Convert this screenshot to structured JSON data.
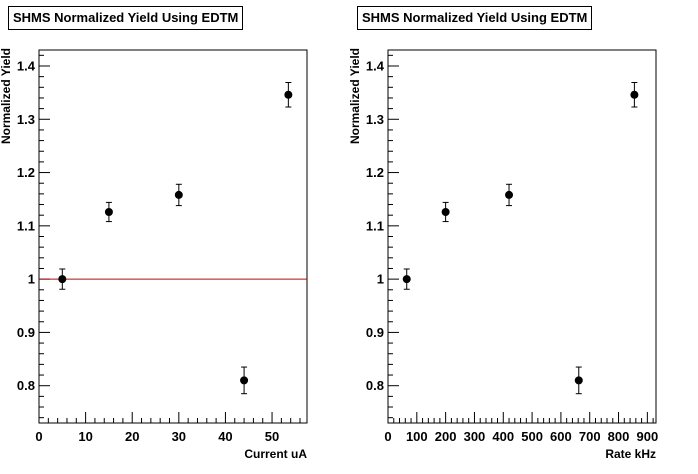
{
  "chart_data": [
    {
      "type": "scatter",
      "title": "SHMS Normalized Yield Using EDTM",
      "xlabel": "Current uA",
      "ylabel": "Normalized Yield",
      "xlim": [
        0,
        57.5
      ],
      "ylim": [
        0.73,
        1.43
      ],
      "x_ticks": [
        0,
        10,
        20,
        30,
        40,
        50
      ],
      "y_ticks": [
        0.8,
        0.9,
        1,
        1.1,
        1.2,
        1.3,
        1.4
      ],
      "reference_line": {
        "y": 1.0,
        "color": "#cc0000"
      },
      "series": [
        {
          "x": [
            5,
            15,
            30,
            44,
            53.5
          ],
          "y": [
            1.0,
            1.126,
            1.158,
            0.81,
            1.346
          ],
          "yerr": [
            0.019,
            0.018,
            0.02,
            0.025,
            0.023
          ]
        }
      ]
    },
    {
      "type": "scatter",
      "title": "SHMS Normalized Yield Using EDTM",
      "xlabel": "Rate kHz",
      "ylabel": "Normalized Yield",
      "xlim": [
        0,
        930
      ],
      "ylim": [
        0.73,
        1.43
      ],
      "x_ticks": [
        0,
        100,
        200,
        300,
        400,
        500,
        600,
        700,
        800,
        900
      ],
      "y_ticks": [
        0.8,
        0.9,
        1,
        1.1,
        1.2,
        1.3,
        1.4
      ],
      "series": [
        {
          "x": [
            65,
            200,
            420,
            662,
            855
          ],
          "y": [
            1.0,
            1.126,
            1.158,
            0.81,
            1.346
          ],
          "yerr": [
            0.019,
            0.018,
            0.02,
            0.025,
            0.023
          ]
        }
      ]
    }
  ]
}
